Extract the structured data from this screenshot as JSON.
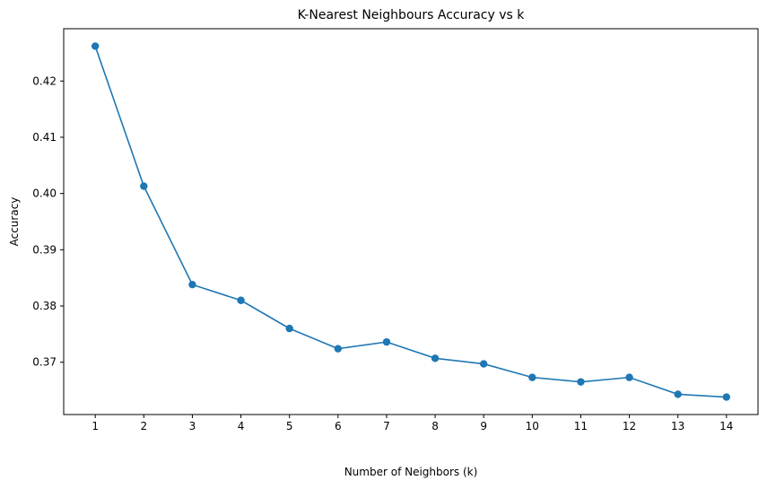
{
  "chart_data": {
    "type": "line",
    "title": "K-Nearest Neighbours Accuracy vs k",
    "xlabel": "Number of Neighbors (k)",
    "ylabel": "Accuracy",
    "x": [
      1,
      2,
      3,
      4,
      5,
      6,
      7,
      8,
      9,
      10,
      11,
      12,
      13,
      14
    ],
    "series": [
      {
        "values": [
          0.4262,
          0.4013,
          0.3838,
          0.381,
          0.376,
          0.3724,
          0.3736,
          0.3707,
          0.3697,
          0.3673,
          0.3665,
          0.3673,
          0.3643,
          0.3638
        ],
        "color": "#1f77b4",
        "marker": "circle"
      }
    ],
    "xticks": [
      "1",
      "2",
      "3",
      "4",
      "5",
      "6",
      "7",
      "8",
      "9",
      "10",
      "11",
      "12",
      "13",
      "14"
    ],
    "yticks": [
      0.37,
      0.38,
      0.39,
      0.4,
      0.41,
      0.42
    ],
    "ytick_labels": [
      "0.37",
      "0.38",
      "0.39",
      "0.40",
      "0.41",
      "0.42"
    ],
    "xlim": [
      0.35,
      14.65
    ],
    "ylim": [
      0.3607,
      0.4293
    ],
    "grid": false,
    "legend": false
  }
}
